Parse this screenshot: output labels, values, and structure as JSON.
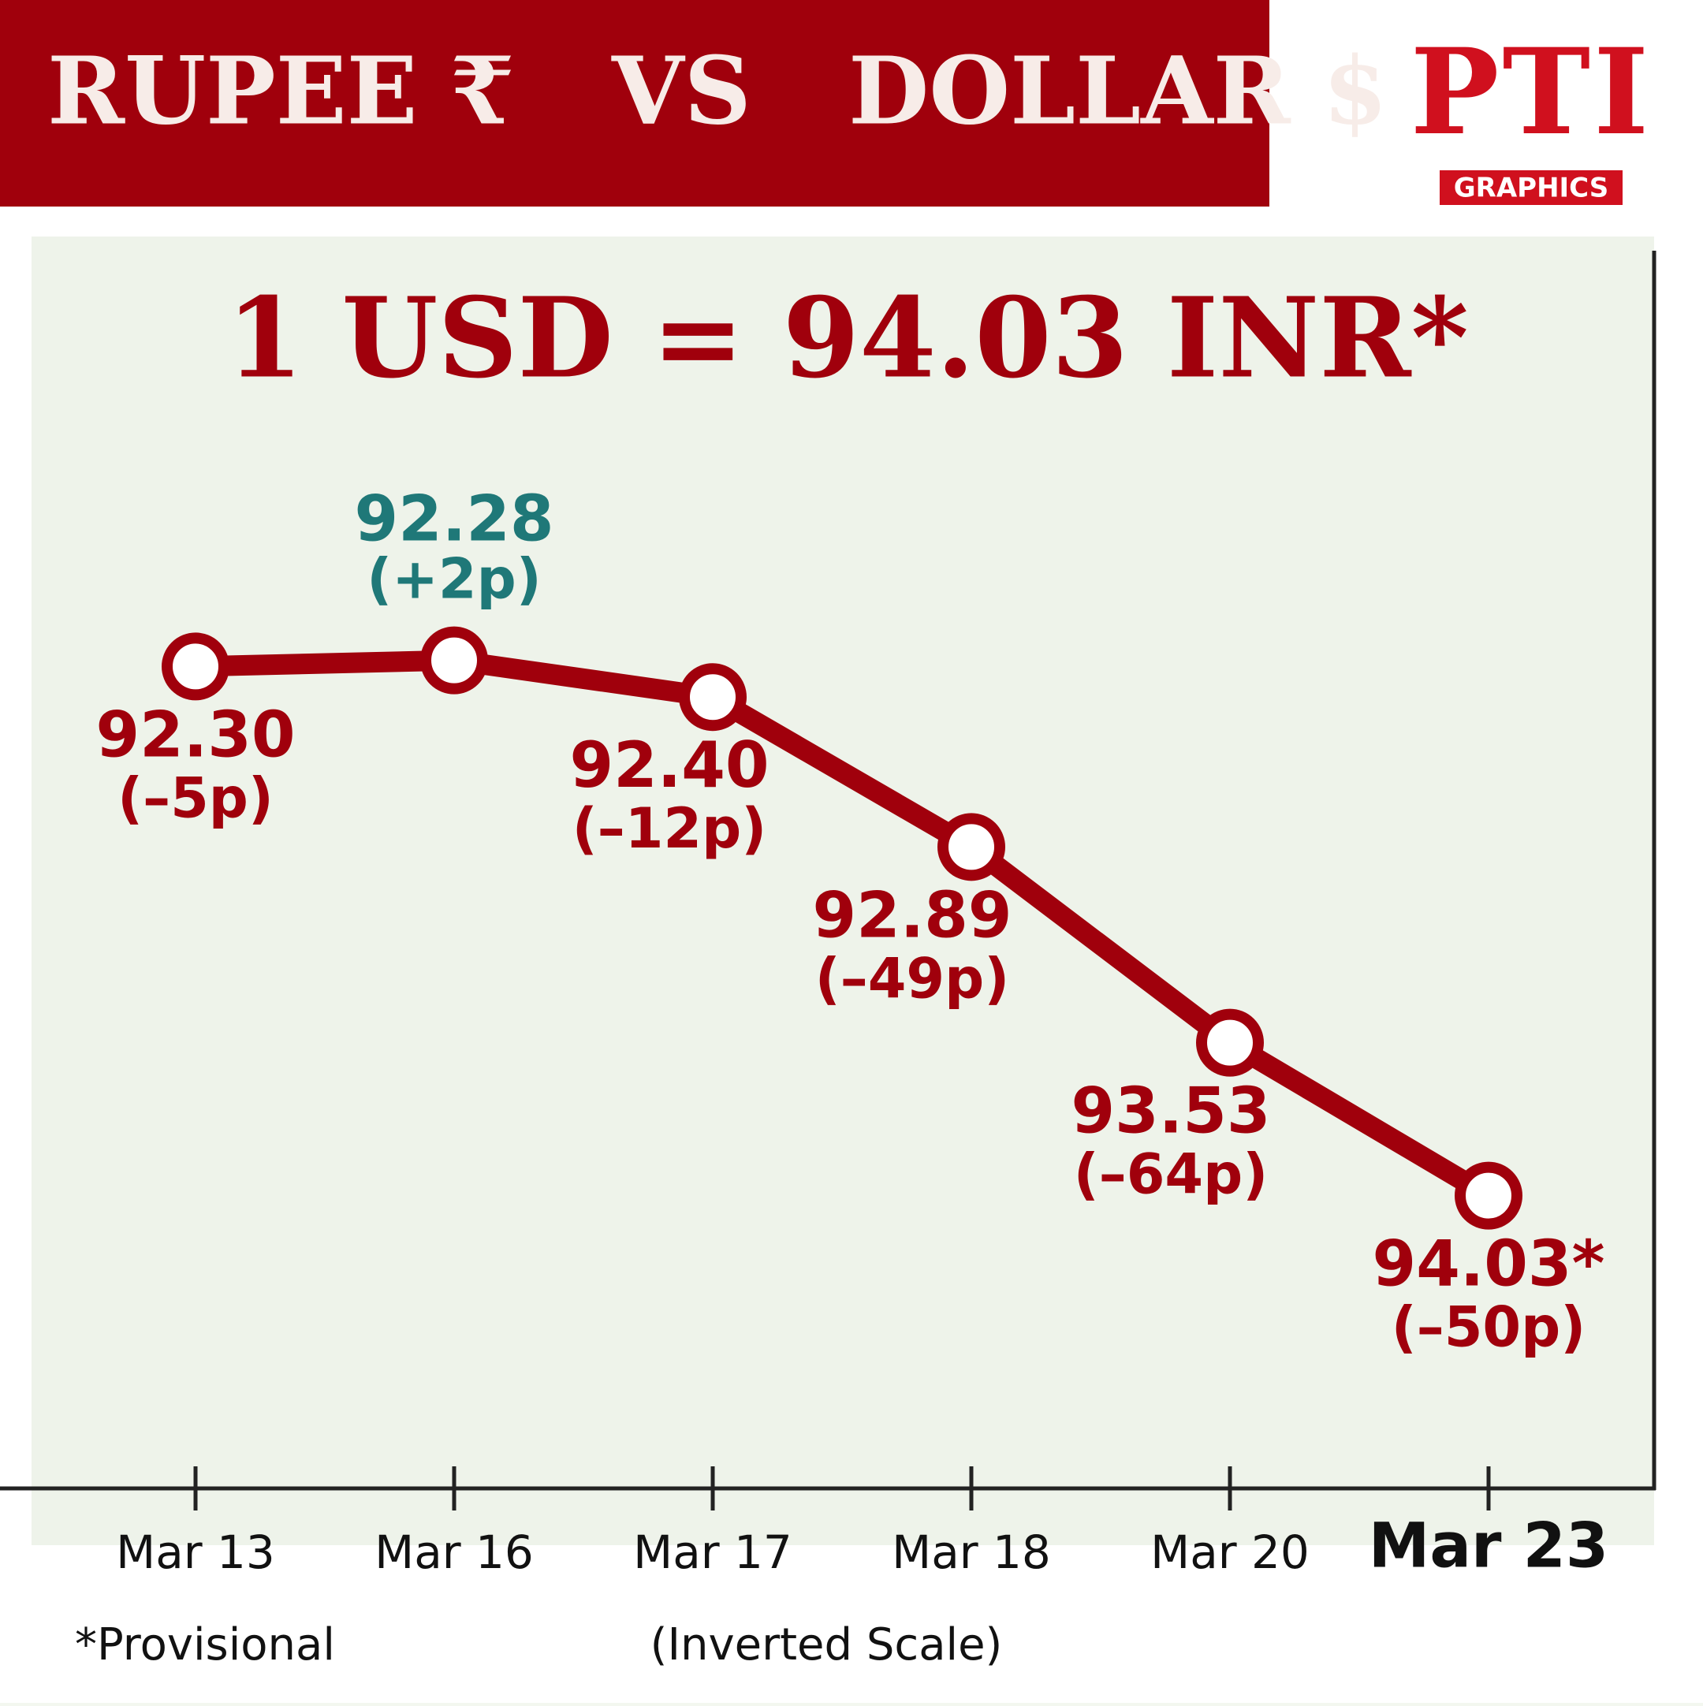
{
  "chart_data": {
    "type": "line",
    "title": "RUPEE ₹   VS   DOLLAR $",
    "subtitle": "1 USD = 94.03 INR*",
    "logo": {
      "text": "PTI",
      "tag": "GRAPHICS"
    },
    "footnote": "*Provisional",
    "scale_note": "(Inverted Scale)",
    "categories": [
      "Mar 13",
      "Mar 16",
      "Mar 17",
      "Mar 18",
      "Mar 20",
      "Mar 23"
    ],
    "series": [
      {
        "color": "#a0000c",
        "values": [
          92.3,
          92.28,
          92.4,
          92.89,
          93.53,
          94.03
        ],
        "value_labels": [
          "92.30",
          "92.28",
          "92.40",
          "92.89",
          "93.53",
          "94.03*"
        ],
        "changes": [
          "(–5p)",
          "(+2p)",
          "(–12p)",
          "(–49p)",
          "(–64p)",
          "(–50p)"
        ],
        "label_colors": [
          "#a0000c",
          "#1f7878",
          "#a0000c",
          "#a0000c",
          "#a0000c",
          "#a0000c"
        ]
      }
    ],
    "ylim": [
      91,
      95
    ],
    "inverted": true,
    "highlight_index": 5
  }
}
